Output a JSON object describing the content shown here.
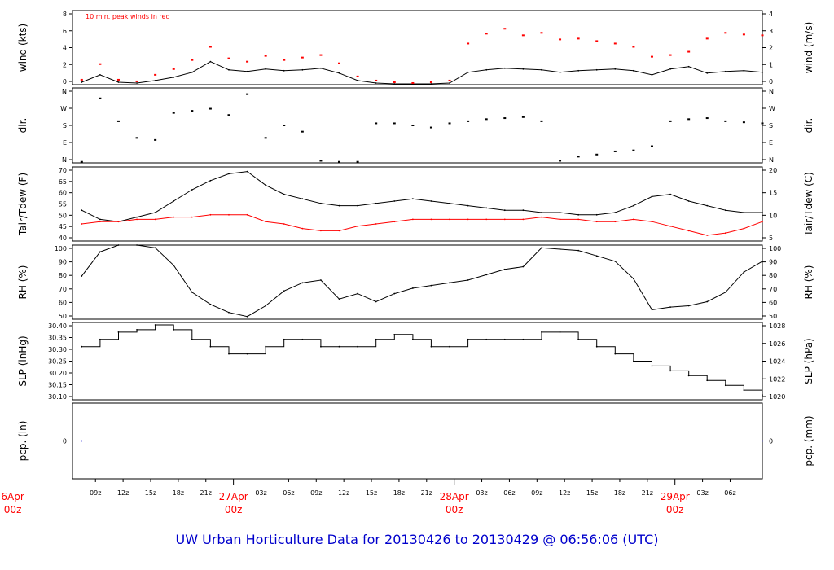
{
  "title": "UW Urban Horticulture Data for 20130426  to  20130429 @ 06:56:06  (UTC)",
  "colors": {
    "frame": "#000000",
    "series_black": "#000000",
    "series_red": "#ff0000",
    "precip": "#0000cc",
    "title": "#0000cc",
    "day_labels": "#ff0000",
    "annotation": "#ff0000"
  },
  "chart_data": [
    {
      "panel": "wind",
      "type": "line",
      "left_label": "wind (kts)",
      "right_label": "wind (m/s)",
      "annotation": "10 min. peak winds in red",
      "left_ticks": [
        "0",
        "2",
        "4",
        "6",
        "8"
      ],
      "right_ticks": [
        "0",
        "1",
        "2",
        "3",
        "4"
      ],
      "ylim": [
        0,
        9
      ],
      "series": [
        {
          "color": "black",
          "x": [
            0,
            2,
            4,
            6,
            8,
            10,
            12,
            14,
            16,
            18,
            20,
            22,
            24,
            26,
            28,
            30,
            32,
            34,
            36,
            38,
            40,
            42,
            44,
            46,
            48,
            50,
            52,
            54,
            56,
            58,
            60,
            62,
            64,
            66,
            68,
            70,
            72,
            74
          ],
          "y": [
            0.3,
            1.2,
            0.3,
            0.2,
            0.5,
            0.9,
            1.5,
            2.8,
            1.8,
            1.6,
            1.9,
            1.7,
            1.8,
            2.0,
            1.4,
            0.5,
            0.2,
            0.1,
            0.1,
            0.1,
            0.2,
            1.5,
            1.8,
            2.0,
            1.9,
            1.8,
            1.5,
            1.7,
            1.8,
            1.9,
            1.7,
            1.2,
            1.9,
            2.2,
            1.4,
            1.6,
            1.7,
            1.5
          ]
        },
        {
          "color": "red",
          "x": [
            0,
            2,
            4,
            6,
            8,
            10,
            12,
            14,
            16,
            18,
            20,
            22,
            24,
            26,
            28,
            30,
            32,
            34,
            36,
            38,
            40,
            42,
            44,
            46,
            48,
            50,
            52,
            54,
            56,
            58,
            60,
            62,
            64,
            66,
            68,
            70,
            72,
            74
          ],
          "y": [
            0.6,
            2.5,
            0.6,
            0.4,
            1.2,
            1.9,
            3.0,
            4.6,
            3.2,
            2.8,
            3.5,
            3.0,
            3.3,
            3.6,
            2.6,
            1.0,
            0.5,
            0.3,
            0.2,
            0.3,
            0.5,
            5.0,
            6.2,
            6.8,
            6.0,
            6.3,
            5.5,
            5.6,
            5.3,
            5.0,
            4.6,
            3.4,
            3.6,
            4.0,
            5.6,
            6.3,
            6.1,
            6.0
          ]
        }
      ]
    },
    {
      "panel": "dir",
      "type": "scatter",
      "left_label": "dir.",
      "right_label": "dir.",
      "left_ticks": [
        "N",
        "E",
        "S",
        "W",
        "N"
      ],
      "right_ticks": [
        "N",
        "E",
        "S",
        "W",
        "N"
      ],
      "ylim": [
        0,
        360
      ],
      "series": [
        {
          "color": "black",
          "x": [
            0,
            2,
            4,
            6,
            8,
            10,
            12,
            14,
            16,
            18,
            20,
            22,
            24,
            26,
            28,
            30,
            32,
            34,
            36,
            38,
            40,
            42,
            44,
            46,
            48,
            50,
            52,
            54,
            56,
            58,
            60,
            62,
            64,
            66,
            68,
            70,
            72,
            74
          ],
          "y": [
            5,
            310,
            200,
            120,
            110,
            240,
            250,
            260,
            230,
            330,
            120,
            180,
            150,
            10,
            5,
            5,
            190,
            190,
            180,
            170,
            190,
            200,
            210,
            215,
            220,
            200,
            10,
            30,
            40,
            55,
            60,
            80,
            200,
            210,
            215,
            200,
            195,
            190
          ]
        }
      ]
    },
    {
      "panel": "temp",
      "type": "line",
      "left_label": "Tair/Tdew (F)",
      "right_label": "Tair/Tdew (C)",
      "left_ticks": [
        "40",
        "45",
        "50",
        "55",
        "60",
        "65",
        "70"
      ],
      "right_ticks": [
        "5",
        "10",
        "15",
        "20"
      ],
      "ylim": [
        37.5,
        70
      ],
      "series": [
        {
          "color": "black",
          "x": [
            0,
            2,
            4,
            6,
            8,
            10,
            12,
            14,
            16,
            18,
            20,
            22,
            24,
            26,
            28,
            30,
            32,
            34,
            36,
            38,
            40,
            42,
            44,
            46,
            48,
            50,
            52,
            54,
            56,
            58,
            60,
            62,
            64,
            66,
            68,
            70,
            72,
            74
          ],
          "y": [
            51,
            47,
            46,
            48,
            50,
            55,
            60,
            64,
            67,
            68,
            62,
            58,
            56,
            54,
            53,
            53,
            54,
            55,
            56,
            55,
            54,
            53,
            52,
            51,
            51,
            50,
            50,
            49,
            49,
            50,
            53,
            57,
            58,
            55,
            53,
            51,
            50,
            50
          ]
        },
        {
          "color": "red",
          "x": [
            0,
            2,
            4,
            6,
            8,
            10,
            12,
            14,
            16,
            18,
            20,
            22,
            24,
            26,
            28,
            30,
            32,
            34,
            36,
            38,
            40,
            42,
            44,
            46,
            48,
            50,
            52,
            54,
            56,
            58,
            60,
            62,
            64,
            66,
            68,
            70,
            72,
            74
          ],
          "y": [
            45,
            46,
            46,
            47,
            47,
            48,
            48,
            49,
            49,
            49,
            46,
            45,
            43,
            42,
            42,
            44,
            45,
            46,
            47,
            47,
            47,
            47,
            47,
            47,
            47,
            48,
            47,
            47,
            46,
            46,
            47,
            46,
            44,
            42,
            40,
            41,
            43,
            46
          ]
        }
      ]
    },
    {
      "panel": "rh",
      "type": "line",
      "left_label": "RH (%)",
      "right_label": "RH (%)",
      "left_ticks": [
        "50",
        "60",
        "70",
        "80",
        "90",
        "100"
      ],
      "right_ticks": [
        "50",
        "60",
        "70",
        "80",
        "90",
        "100"
      ],
      "ylim": [
        45,
        100
      ],
      "series": [
        {
          "color": "black",
          "x": [
            0,
            2,
            4,
            6,
            8,
            10,
            12,
            14,
            16,
            18,
            20,
            22,
            24,
            26,
            28,
            30,
            32,
            34,
            36,
            38,
            40,
            42,
            44,
            46,
            48,
            50,
            52,
            54,
            56,
            58,
            60,
            62,
            64,
            66,
            68,
            70,
            72,
            74
          ],
          "y": [
            77,
            95,
            100,
            100,
            98,
            85,
            65,
            56,
            50,
            47,
            55,
            66,
            72,
            74,
            60,
            64,
            58,
            64,
            68,
            70,
            72,
            74,
            78,
            82,
            84,
            98,
            97,
            96,
            92,
            88,
            75,
            52,
            54,
            55,
            58,
            65,
            80,
            88
          ]
        }
      ]
    },
    {
      "panel": "slp",
      "type": "line",
      "left_label": "SLP (inHg)",
      "right_label": "SLP (hPa)",
      "left_ticks": [
        "30.10",
        "30.15",
        "30.20",
        "30.25",
        "30.30",
        "30.35",
        "30.40"
      ],
      "right_ticks": [
        "1020",
        "1022",
        "1024",
        "1026",
        "1028"
      ],
      "ylim": [
        30.08,
        30.4
      ],
      "series": [
        {
          "color": "black",
          "x": [
            0,
            2,
            4,
            6,
            8,
            10,
            12,
            14,
            16,
            18,
            20,
            22,
            24,
            26,
            28,
            30,
            32,
            34,
            36,
            38,
            40,
            42,
            44,
            46,
            48,
            50,
            52,
            54,
            56,
            58,
            60,
            62,
            64,
            66,
            68,
            70,
            72,
            74
          ],
          "y": [
            30.3,
            30.33,
            30.36,
            30.37,
            30.39,
            30.37,
            30.33,
            30.3,
            30.27,
            30.27,
            30.3,
            30.33,
            30.33,
            30.3,
            30.3,
            30.3,
            30.33,
            30.35,
            30.33,
            30.3,
            30.3,
            30.33,
            30.33,
            30.33,
            30.33,
            30.36,
            30.36,
            30.33,
            30.3,
            30.27,
            30.24,
            30.22,
            30.2,
            30.18,
            30.16,
            30.14,
            30.12,
            30.1
          ]
        }
      ]
    },
    {
      "panel": "pcp",
      "type": "line",
      "left_label": "pcp. (in)",
      "right_label": "pcp. (mm)",
      "left_ticks": [
        "0"
      ],
      "right_ticks": [
        "0"
      ],
      "ylim": [
        -1,
        1
      ],
      "series": [
        {
          "color": "blue",
          "x": [
            0,
            74
          ],
          "y": [
            0,
            0
          ]
        }
      ]
    }
  ],
  "time_axis": {
    "hour_ticks": [
      {
        "t": 1.5,
        "label": "09z"
      },
      {
        "t": 4.5,
        "label": "12z"
      },
      {
        "t": 7.5,
        "label": "15z"
      },
      {
        "t": 10.5,
        "label": "18z"
      },
      {
        "t": 13.5,
        "label": "21z"
      },
      {
        "t": 19.5,
        "label": "03z"
      },
      {
        "t": 22.5,
        "label": "06z"
      },
      {
        "t": 25.5,
        "label": "09z"
      },
      {
        "t": 28.5,
        "label": "12z"
      },
      {
        "t": 31.5,
        "label": "15z"
      },
      {
        "t": 34.5,
        "label": "18z"
      },
      {
        "t": 37.5,
        "label": "21z"
      },
      {
        "t": 43.5,
        "label": "03z"
      },
      {
        "t": 46.5,
        "label": "06z"
      },
      {
        "t": 49.5,
        "label": "09z"
      },
      {
        "t": 52.5,
        "label": "12z"
      },
      {
        "t": 55.5,
        "label": "15z"
      },
      {
        "t": 58.5,
        "label": "18z"
      },
      {
        "t": 61.5,
        "label": "21z"
      },
      {
        "t": 67.5,
        "label": "03z"
      },
      {
        "t": 70.5,
        "label": "06z"
      }
    ],
    "day_ticks": [
      {
        "t": -7.5,
        "label": "6Apr",
        "sub": "00z"
      },
      {
        "t": 16.5,
        "label": "27Apr",
        "sub": "00z"
      },
      {
        "t": 40.5,
        "label": "28Apr",
        "sub": "00z"
      },
      {
        "t": 64.5,
        "label": "29Apr",
        "sub": "00z"
      }
    ]
  }
}
